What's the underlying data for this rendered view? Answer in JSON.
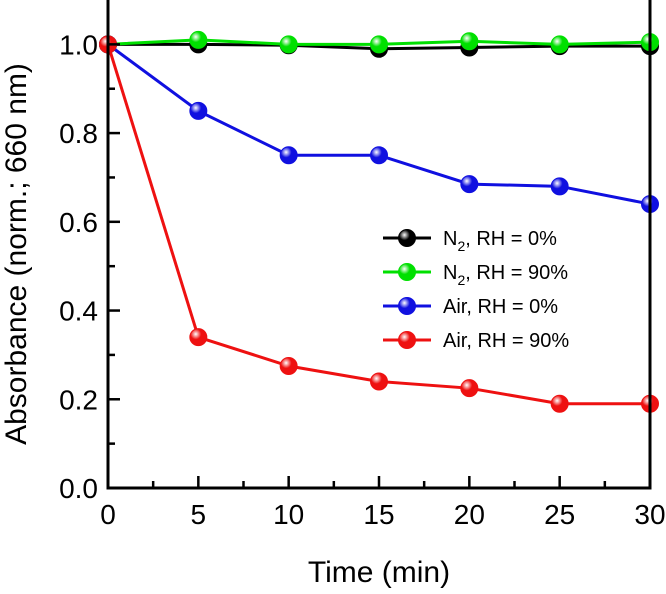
{
  "chart_data": {
    "type": "line",
    "title": "",
    "xlabel": "Time (min)",
    "ylabel": "Absorbance (norm.; 660 nm)",
    "x": [
      0,
      5,
      10,
      15,
      20,
      25,
      30
    ],
    "xlim": [
      0,
      30
    ],
    "ylim": [
      0,
      1.1
    ],
    "xticks": [
      0,
      5,
      10,
      15,
      20,
      25,
      30
    ],
    "yticks": [
      0.0,
      0.2,
      0.4,
      0.6,
      0.8,
      1.0
    ],
    "xtick_labels": [
      "0",
      "5",
      "10",
      "15",
      "20",
      "25",
      "30"
    ],
    "ytick_labels": [
      "0.0",
      "0.2",
      "0.4",
      "0.6",
      "0.8",
      "1.0"
    ],
    "grid": false,
    "legend_position": "center-right",
    "series": [
      {
        "name": "N2, RH = 0%",
        "label_main": "N",
        "label_sub": "2",
        "label_rest": ", RH = 0%",
        "color": "#000000",
        "values": [
          1.0,
          1.0,
          0.998,
          0.99,
          0.993,
          0.996,
          0.996
        ]
      },
      {
        "name": "N2, RH = 90%",
        "label_main": "N",
        "label_sub": "2",
        "label_rest": ", RH = 90%",
        "color": "#00e000",
        "values": [
          1.0,
          1.01,
          1.0,
          1.0,
          1.007,
          1.0,
          1.005
        ]
      },
      {
        "name": "Air, RH = 0%",
        "label_main": "Air, RH = 0%",
        "label_sub": "",
        "label_rest": "",
        "color": "#1010e0",
        "values": [
          1.0,
          0.85,
          0.75,
          0.75,
          0.685,
          0.68,
          0.64
        ]
      },
      {
        "name": "Air, RH = 90%",
        "label_main": "Air, RH = 90%",
        "label_sub": "",
        "label_rest": "",
        "color": "#ee1111",
        "values": [
          1.0,
          0.34,
          0.275,
          0.24,
          0.225,
          0.19,
          0.19
        ]
      }
    ]
  }
}
